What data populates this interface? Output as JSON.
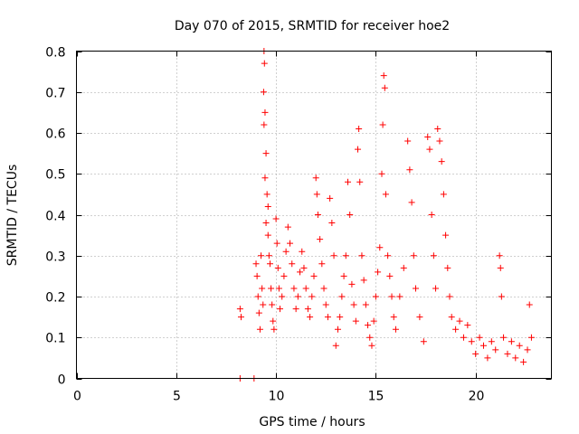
{
  "chart_data": {
    "type": "scatter",
    "title": "Day 070 of 2015, SRMTID for receiver hoe2",
    "xlabel": "GPS time / hours",
    "ylabel": "SRMTID / TECUs",
    "xlim": [
      0,
      23.8
    ],
    "ylim": [
      0,
      0.8
    ],
    "xticks": [
      0,
      5,
      10,
      15,
      20
    ],
    "yticks": [
      0,
      0.1,
      0.2,
      0.3,
      0.4,
      0.5,
      0.6,
      0.7,
      0.8
    ],
    "xtick_labels": [
      "0",
      "5",
      "10",
      "15",
      "20"
    ],
    "ytick_labels": [
      "0",
      "0.1",
      "0.2",
      "0.3",
      "0.4",
      "0.5",
      "0.6",
      "0.7",
      "0.8"
    ],
    "grid": true,
    "marker": "+",
    "color": "#ff0000",
    "series": [
      {
        "name": "SRMTID",
        "points": [
          [
            8.2,
            0.17
          ],
          [
            8.25,
            0.15
          ],
          [
            8.2,
            0.0
          ],
          [
            8.9,
            0.0
          ],
          [
            9.0,
            0.28
          ],
          [
            9.05,
            0.25
          ],
          [
            9.1,
            0.2
          ],
          [
            9.15,
            0.16
          ],
          [
            9.2,
            0.12
          ],
          [
            9.25,
            0.3
          ],
          [
            9.3,
            0.22
          ],
          [
            9.35,
            0.18
          ],
          [
            9.4,
            0.8
          ],
          [
            9.42,
            0.77
          ],
          [
            9.38,
            0.7
          ],
          [
            9.45,
            0.65
          ],
          [
            9.4,
            0.62
          ],
          [
            9.5,
            0.55
          ],
          [
            9.45,
            0.49
          ],
          [
            9.55,
            0.45
          ],
          [
            9.6,
            0.42
          ],
          [
            9.5,
            0.38
          ],
          [
            9.6,
            0.35
          ],
          [
            9.65,
            0.3
          ],
          [
            9.7,
            0.28
          ],
          [
            9.75,
            0.22
          ],
          [
            9.8,
            0.18
          ],
          [
            9.85,
            0.14
          ],
          [
            9.9,
            0.12
          ],
          [
            10.0,
            0.39
          ],
          [
            10.05,
            0.33
          ],
          [
            10.1,
            0.27
          ],
          [
            10.15,
            0.22
          ],
          [
            10.2,
            0.17
          ],
          [
            10.3,
            0.2
          ],
          [
            10.4,
            0.25
          ],
          [
            10.5,
            0.31
          ],
          [
            10.6,
            0.37
          ],
          [
            10.7,
            0.33
          ],
          [
            10.8,
            0.28
          ],
          [
            10.9,
            0.22
          ],
          [
            11.0,
            0.17
          ],
          [
            11.1,
            0.2
          ],
          [
            11.2,
            0.26
          ],
          [
            11.3,
            0.31
          ],
          [
            11.4,
            0.27
          ],
          [
            11.5,
            0.22
          ],
          [
            11.6,
            0.17
          ],
          [
            11.7,
            0.15
          ],
          [
            11.8,
            0.2
          ],
          [
            11.9,
            0.25
          ],
          [
            12.0,
            0.49
          ],
          [
            12.05,
            0.45
          ],
          [
            12.1,
            0.4
          ],
          [
            12.2,
            0.34
          ],
          [
            12.3,
            0.28
          ],
          [
            12.4,
            0.22
          ],
          [
            12.5,
            0.18
          ],
          [
            12.6,
            0.15
          ],
          [
            12.7,
            0.44
          ],
          [
            12.8,
            0.38
          ],
          [
            12.9,
            0.3
          ],
          [
            13.0,
            0.08
          ],
          [
            13.1,
            0.12
          ],
          [
            13.2,
            0.15
          ],
          [
            13.3,
            0.2
          ],
          [
            13.4,
            0.25
          ],
          [
            13.5,
            0.3
          ],
          [
            13.6,
            0.48
          ],
          [
            13.7,
            0.4
          ],
          [
            13.8,
            0.23
          ],
          [
            13.9,
            0.18
          ],
          [
            14.0,
            0.14
          ],
          [
            14.1,
            0.56
          ],
          [
            14.15,
            0.61
          ],
          [
            14.2,
            0.48
          ],
          [
            14.3,
            0.3
          ],
          [
            14.4,
            0.24
          ],
          [
            14.5,
            0.18
          ],
          [
            14.6,
            0.13
          ],
          [
            14.7,
            0.1
          ],
          [
            14.8,
            0.08
          ],
          [
            14.9,
            0.14
          ],
          [
            15.0,
            0.2
          ],
          [
            15.1,
            0.26
          ],
          [
            15.2,
            0.32
          ],
          [
            15.3,
            0.5
          ],
          [
            15.35,
            0.62
          ],
          [
            15.4,
            0.74
          ],
          [
            15.45,
            0.71
          ],
          [
            15.5,
            0.45
          ],
          [
            15.6,
            0.3
          ],
          [
            15.7,
            0.25
          ],
          [
            15.8,
            0.2
          ],
          [
            15.9,
            0.15
          ],
          [
            16.0,
            0.12
          ],
          [
            16.2,
            0.2
          ],
          [
            16.4,
            0.27
          ],
          [
            16.6,
            0.58
          ],
          [
            16.7,
            0.51
          ],
          [
            16.8,
            0.43
          ],
          [
            16.9,
            0.3
          ],
          [
            17.0,
            0.22
          ],
          [
            17.2,
            0.15
          ],
          [
            17.4,
            0.09
          ],
          [
            17.6,
            0.59
          ],
          [
            17.7,
            0.56
          ],
          [
            17.8,
            0.4
          ],
          [
            17.9,
            0.3
          ],
          [
            18.0,
            0.22
          ],
          [
            18.1,
            0.61
          ],
          [
            18.2,
            0.58
          ],
          [
            18.3,
            0.53
          ],
          [
            18.4,
            0.45
          ],
          [
            18.5,
            0.35
          ],
          [
            18.6,
            0.27
          ],
          [
            18.7,
            0.2
          ],
          [
            18.8,
            0.15
          ],
          [
            19.0,
            0.12
          ],
          [
            19.2,
            0.14
          ],
          [
            19.4,
            0.1
          ],
          [
            19.6,
            0.13
          ],
          [
            19.8,
            0.09
          ],
          [
            20.0,
            0.06
          ],
          [
            20.2,
            0.1
          ],
          [
            20.4,
            0.08
          ],
          [
            20.6,
            0.05
          ],
          [
            20.8,
            0.09
          ],
          [
            21.0,
            0.07
          ],
          [
            21.2,
            0.3
          ],
          [
            21.25,
            0.27
          ],
          [
            21.3,
            0.2
          ],
          [
            21.4,
            0.1
          ],
          [
            21.6,
            0.06
          ],
          [
            21.8,
            0.09
          ],
          [
            22.0,
            0.05
          ],
          [
            22.2,
            0.08
          ],
          [
            22.4,
            0.04
          ],
          [
            22.6,
            0.07
          ],
          [
            22.7,
            0.18
          ],
          [
            22.8,
            0.1
          ]
        ]
      }
    ]
  }
}
